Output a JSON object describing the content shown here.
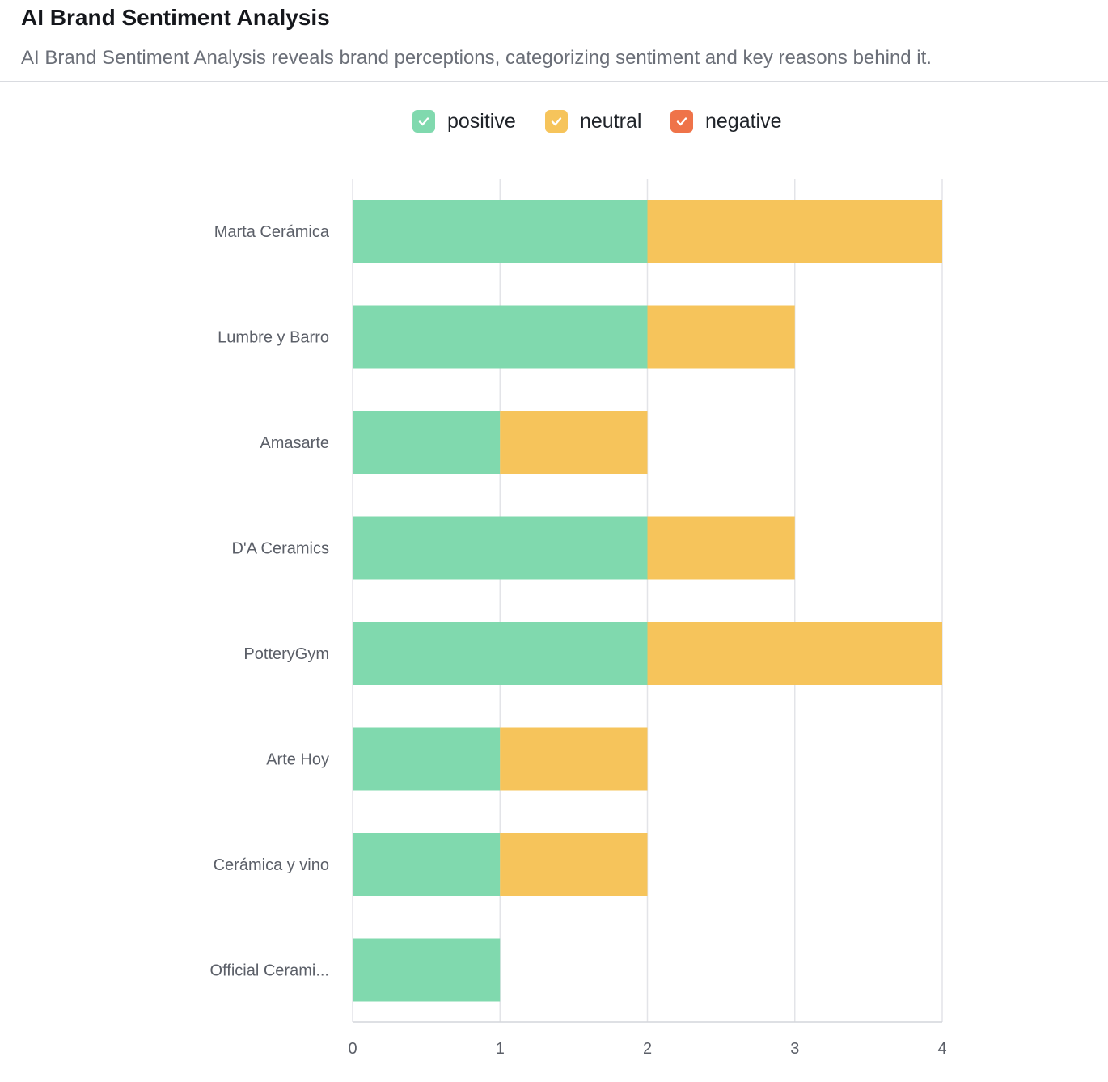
{
  "header": {
    "title": "AI Brand Sentiment Analysis",
    "subtitle": "AI Brand Sentiment Analysis reveals brand perceptions, categorizing sentiment and key reasons behind it."
  },
  "legend": [
    {
      "label": "positive",
      "color": "#80d9ae",
      "icon": "check-icon",
      "checked": true
    },
    {
      "label": "neutral",
      "color": "#f6c45b",
      "icon": "check-icon",
      "checked": true
    },
    {
      "label": "negative",
      "color": "#ef7349",
      "icon": "check-icon",
      "checked": true
    }
  ],
  "chart_data": {
    "type": "bar",
    "orientation": "horizontal",
    "stacked": true,
    "categories": [
      "Marta Cerámica",
      "Lumbre y Barro",
      "Amasarte",
      "D'A Ceramics",
      "PotteryGym",
      "Arte Hoy",
      "Cerámica y vino",
      "Official Cerami..."
    ],
    "series": [
      {
        "name": "positive",
        "color": "#80d9ae",
        "values": [
          2,
          2,
          1,
          2,
          2,
          1,
          1,
          1
        ]
      },
      {
        "name": "neutral",
        "color": "#f6c45b",
        "values": [
          2,
          1,
          1,
          1,
          2,
          1,
          1,
          0
        ]
      },
      {
        "name": "negative",
        "color": "#ef7349",
        "values": [
          0,
          0,
          0,
          0,
          0,
          0,
          0,
          0
        ]
      }
    ],
    "xticks": [
      "0",
      "1",
      "2",
      "3",
      "4"
    ],
    "xlim": [
      0,
      4
    ],
    "grid": true,
    "legend_position": "top"
  }
}
